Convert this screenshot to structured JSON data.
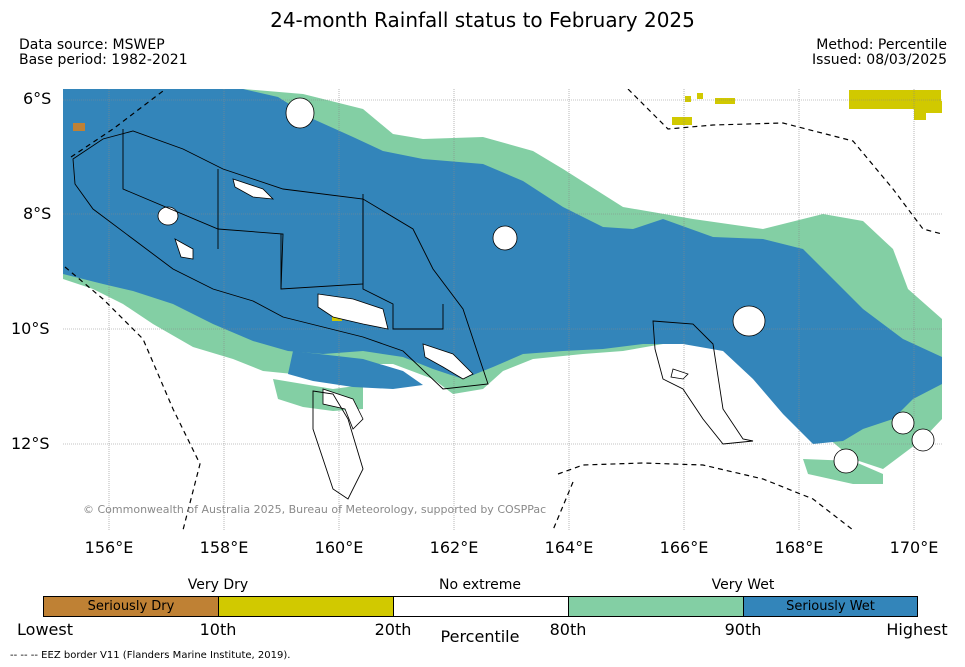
{
  "title": "24-month Rainfall status to February 2025",
  "header": {
    "data_source": "Data source: MSWEP",
    "base_period": "Base period: 1982-2021",
    "method": "Method: Percentile",
    "issued": "Issued: 08/03/2025"
  },
  "map": {
    "lat_labels": [
      "6°S",
      "8°S",
      "10°S",
      "12°S"
    ],
    "lon_labels": [
      "156°E",
      "158°E",
      "160°E",
      "162°E",
      "164°E",
      "166°E",
      "168°E",
      "170°E"
    ],
    "copyright": "© Commonwealth of Australia 2025, Bureau of Meteorology, supported by COSPPac"
  },
  "legend": {
    "categories": [
      "Very Dry",
      "No extreme",
      "Very Wet"
    ],
    "segments": [
      {
        "label": "Seriously Dry",
        "color": "#bf8134"
      },
      {
        "label": "",
        "color": "#d1c900"
      },
      {
        "label": "",
        "color": "#ffffff"
      },
      {
        "label": "",
        "color": "#83cfa4"
      },
      {
        "label": "Seriously Wet",
        "color": "#3385ba"
      }
    ],
    "ticks": [
      "Lowest",
      "10th",
      "20th",
      "80th",
      "90th",
      "Highest"
    ],
    "axis_label": "Percentile"
  },
  "footnote": "--  --  -- EEZ border V11 (Flanders Marine Institute, 2019).",
  "colors": {
    "seriously_wet": "#3385ba",
    "very_wet": "#83cfa4",
    "very_dry": "#d1c900",
    "seriously_dry": "#bf8134"
  }
}
